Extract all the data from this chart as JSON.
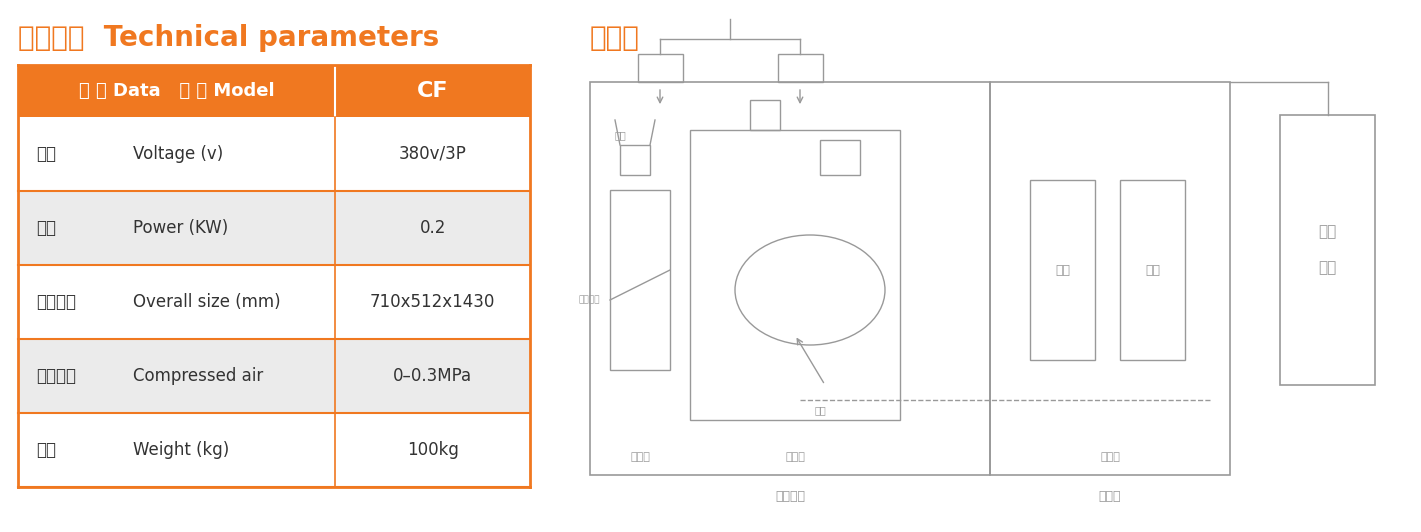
{
  "title_left": "技术参数  Technical parameters",
  "title_right": "原理图",
  "title_color": "#F07820",
  "title_fontsize": 20,
  "header_bg": "#F07820",
  "header_text_color": "#FFFFFF",
  "header_col1": "参 数 Data   型 号 Model",
  "header_col2": "CF",
  "rows": [
    {
      "zh": "电压",
      "en": "Voltage (v)",
      "val": "380v/3P",
      "shaded": false
    },
    {
      "zh": "功率",
      "en": "Power (KW)",
      "val": "0.2",
      "shaded": true
    },
    {
      "zh": "外形尺寸",
      "en": "Overall size (mm)",
      "val": "710x512x1430",
      "shaded": false
    },
    {
      "zh": "压缩空气",
      "en": "Compressed air",
      "val": "0–0.3MPa",
      "shaded": true
    },
    {
      "zh": "重量",
      "en": "Weight (kg)",
      "val": "100kg",
      "shaded": false
    }
  ],
  "row_shaded_bg": "#EBEBEB",
  "row_normal_bg": "#FFFFFF",
  "border_color": "#F07820",
  "text_color_dark": "#333333",
  "gray": "#888888",
  "light_gray": "#AAAAAA"
}
